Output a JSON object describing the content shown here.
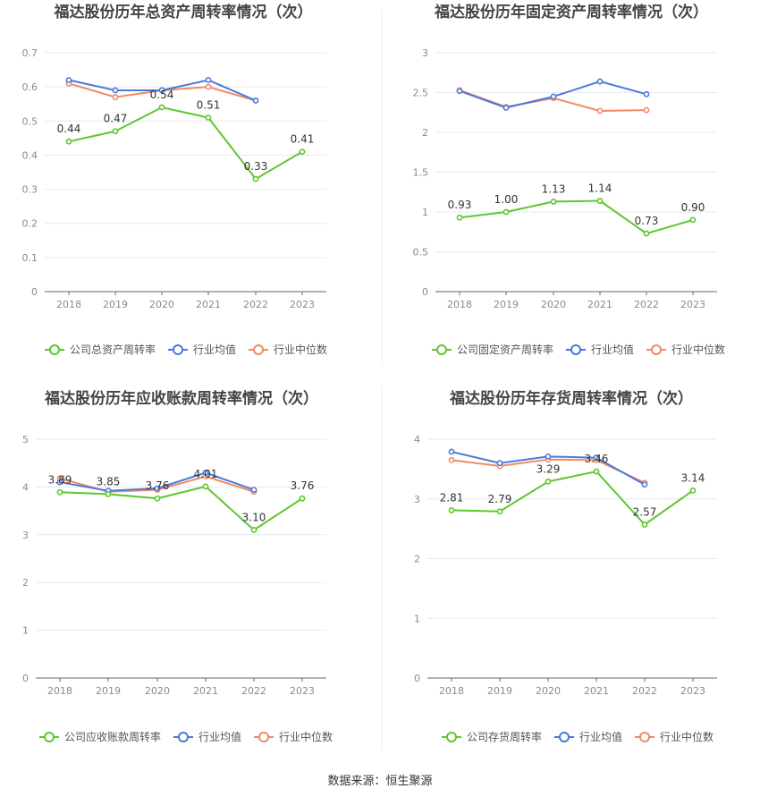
{
  "colors": {
    "company": "#5cc72f",
    "industry_avg": "#4b79d9",
    "industry_median": "#f08a62",
    "grid": "#e6e9f2",
    "axis_text": "#8a8a8a",
    "title": "#444444"
  },
  "source_text": "数据来源：恒生聚源",
  "legend_labels": {
    "industry_avg": "行业均值",
    "industry_median": "行业中位数"
  },
  "chart_data": [
    {
      "type": "line",
      "title": "福达股份历年总资产周转率情况（次）",
      "x": [
        "2018",
        "2019",
        "2020",
        "2021",
        "2022",
        "2023"
      ],
      "ylim": [
        0,
        0.7
      ],
      "yticks": [
        "0",
        "0.1",
        "0.2",
        "0.3",
        "0.4",
        "0.5",
        "0.6",
        "0.7"
      ],
      "grid": true,
      "legend_position": "bottom",
      "series": [
        {
          "name": "公司总资产周转率",
          "key": "company",
          "values": [
            0.44,
            0.47,
            0.54,
            0.51,
            0.33,
            0.41
          ],
          "labels": [
            "0.44",
            "0.47",
            "0.54",
            "0.51",
            "0.33",
            "0.41"
          ]
        },
        {
          "name": "行业均值",
          "key": "industry_avg",
          "values": [
            0.62,
            0.59,
            0.59,
            0.62,
            0.56,
            null
          ]
        },
        {
          "name": "行业中位数",
          "key": "industry_median",
          "values": [
            0.61,
            0.57,
            0.59,
            0.6,
            0.56,
            null
          ]
        }
      ]
    },
    {
      "type": "line",
      "title": "福达股份历年固定资产周转率情况（次）",
      "x": [
        "2018",
        "2019",
        "2020",
        "2021",
        "2022",
        "2023"
      ],
      "ylim": [
        0,
        3
      ],
      "yticks": [
        "0",
        "0.5",
        "1",
        "1.5",
        "2",
        "2.5",
        "3"
      ],
      "grid": true,
      "legend_position": "bottom",
      "series": [
        {
          "name": "公司固定资产周转率",
          "key": "company",
          "values": [
            0.93,
            1.0,
            1.13,
            1.14,
            0.73,
            0.9
          ],
          "labels": [
            "0.93",
            "1.00",
            "1.13",
            "1.14",
            "0.73",
            "0.90"
          ]
        },
        {
          "name": "行业均值",
          "key": "industry_avg",
          "values": [
            2.52,
            2.31,
            2.45,
            2.64,
            2.48,
            null
          ]
        },
        {
          "name": "行业中位数",
          "key": "industry_median",
          "values": [
            2.53,
            2.32,
            2.43,
            2.27,
            2.28,
            null
          ]
        }
      ]
    },
    {
      "type": "line",
      "title": "福达股份历年应收账款周转率情况（次）",
      "x": [
        "2018",
        "2019",
        "2020",
        "2021",
        "2022",
        "2023"
      ],
      "ylim": [
        0,
        5
      ],
      "yticks": [
        "0",
        "1",
        "2",
        "3",
        "4",
        "5"
      ],
      "grid": true,
      "legend_position": "bottom",
      "series": [
        {
          "name": "公司应收账款周转率",
          "key": "company",
          "values": [
            3.89,
            3.85,
            3.76,
            4.01,
            3.1,
            3.76
          ],
          "labels": [
            "3.89",
            "3.85",
            "3.76",
            "4.01",
            "3.10",
            "3.76"
          ]
        },
        {
          "name": "行业均值",
          "key": "industry_avg",
          "values": [
            4.1,
            3.92,
            3.97,
            4.3,
            3.94,
            null
          ]
        },
        {
          "name": "行业中位数",
          "key": "industry_median",
          "values": [
            4.18,
            3.9,
            3.94,
            4.22,
            3.9,
            null
          ]
        }
      ]
    },
    {
      "type": "line",
      "title": "福达股份历年存货周转率情况（次）",
      "x": [
        "2018",
        "2019",
        "2020",
        "2021",
        "2022",
        "2023"
      ],
      "ylim": [
        0,
        4
      ],
      "yticks": [
        "0",
        "1",
        "2",
        "3",
        "4"
      ],
      "grid": true,
      "legend_position": "bottom",
      "series": [
        {
          "name": "公司存货周转率",
          "key": "company",
          "values": [
            2.81,
            2.79,
            3.29,
            3.46,
            2.57,
            3.14
          ],
          "labels": [
            "2.81",
            "2.79",
            "3.29",
            "3.46",
            "2.57",
            "3.14"
          ]
        },
        {
          "name": "行业均值",
          "key": "industry_avg",
          "values": [
            3.79,
            3.6,
            3.71,
            3.69,
            3.24,
            null
          ]
        },
        {
          "name": "行业中位数",
          "key": "industry_median",
          "values": [
            3.65,
            3.55,
            3.66,
            3.65,
            3.27,
            null
          ]
        }
      ]
    }
  ]
}
